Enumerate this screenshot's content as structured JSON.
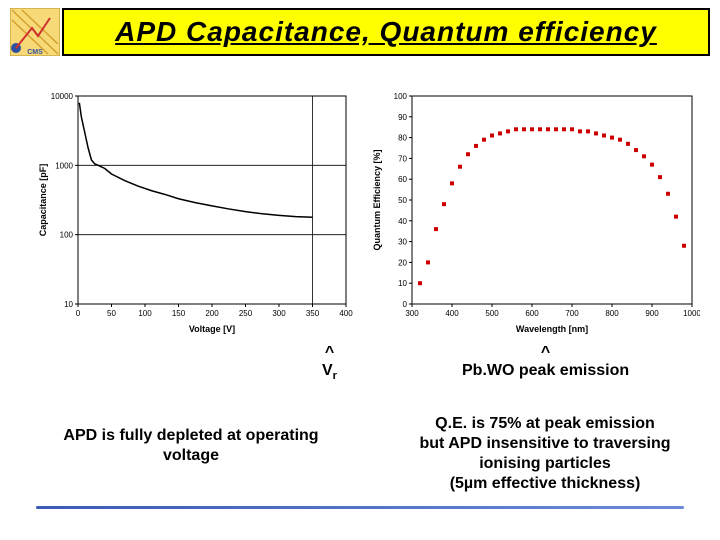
{
  "title": "APD  Capacitance, Quantum efficiency",
  "arrow_vr_label": "Vr",
  "arrow_pbwo_label": "Pb.WO peak emission",
  "caption_left": "APD is fully depleted at operating voltage",
  "caption_right_l1": "Q.E. is 75% at peak emission",
  "caption_right_l2": "but APD insensitive to traversing",
  "caption_right_l3": "ionising particles",
  "caption_right_l4": "(5µm effective thickness)",
  "chart_left": {
    "type": "line",
    "xlabel": "Voltage [V]",
    "ylabel": "Capacitance [pF]",
    "xlim": [
      0,
      400
    ],
    "xticks": [
      0,
      50,
      100,
      150,
      200,
      250,
      300,
      350,
      400
    ],
    "yscale": "log",
    "ylim": [
      10,
      10000
    ],
    "yticks": [
      10,
      100,
      1000,
      10000
    ],
    "label_fontsize": 9,
    "tick_fontsize": 8,
    "line_color": "#000000",
    "line_width": 1.5,
    "grid_color": "#000000",
    "hlines": [
      100,
      1000
    ],
    "vline": 350,
    "series": [
      {
        "x": 2,
        "y": 8000
      },
      {
        "x": 5,
        "y": 5000
      },
      {
        "x": 10,
        "y": 3000
      },
      {
        "x": 15,
        "y": 1800
      },
      {
        "x": 20,
        "y": 1200
      },
      {
        "x": 25,
        "y": 1050
      },
      {
        "x": 30,
        "y": 1000
      },
      {
        "x": 40,
        "y": 900
      },
      {
        "x": 50,
        "y": 750
      },
      {
        "x": 70,
        "y": 600
      },
      {
        "x": 90,
        "y": 500
      },
      {
        "x": 110,
        "y": 430
      },
      {
        "x": 130,
        "y": 380
      },
      {
        "x": 150,
        "y": 330
      },
      {
        "x": 175,
        "y": 290
      },
      {
        "x": 200,
        "y": 260
      },
      {
        "x": 225,
        "y": 235
      },
      {
        "x": 250,
        "y": 215
      },
      {
        "x": 275,
        "y": 200
      },
      {
        "x": 300,
        "y": 190
      },
      {
        "x": 325,
        "y": 182
      },
      {
        "x": 350,
        "y": 178
      }
    ]
  },
  "chart_right": {
    "type": "scatter",
    "xlabel": "Wavelength [nm]",
    "ylabel": "Quantum Efficiency [%]",
    "xlim": [
      300,
      1000
    ],
    "xticks": [
      300,
      400,
      500,
      600,
      700,
      800,
      900,
      1000
    ],
    "ylim": [
      0,
      100
    ],
    "yticks": [
      0,
      10,
      20,
      30,
      40,
      50,
      60,
      70,
      80,
      90,
      100
    ],
    "label_fontsize": 9,
    "tick_fontsize": 8,
    "marker_color": "#cc0000",
    "marker_size": 4,
    "grid_color": "#cccccc",
    "series": [
      {
        "x": 320,
        "y": 10
      },
      {
        "x": 340,
        "y": 20
      },
      {
        "x": 360,
        "y": 36
      },
      {
        "x": 380,
        "y": 48
      },
      {
        "x": 400,
        "y": 58
      },
      {
        "x": 420,
        "y": 66
      },
      {
        "x": 440,
        "y": 72
      },
      {
        "x": 460,
        "y": 76
      },
      {
        "x": 480,
        "y": 79
      },
      {
        "x": 500,
        "y": 81
      },
      {
        "x": 520,
        "y": 82
      },
      {
        "x": 540,
        "y": 83
      },
      {
        "x": 560,
        "y": 84
      },
      {
        "x": 580,
        "y": 84
      },
      {
        "x": 600,
        "y": 84
      },
      {
        "x": 620,
        "y": 84
      },
      {
        "x": 640,
        "y": 84
      },
      {
        "x": 660,
        "y": 84
      },
      {
        "x": 680,
        "y": 84
      },
      {
        "x": 700,
        "y": 84
      },
      {
        "x": 720,
        "y": 83
      },
      {
        "x": 740,
        "y": 83
      },
      {
        "x": 760,
        "y": 82
      },
      {
        "x": 780,
        "y": 81
      },
      {
        "x": 800,
        "y": 80
      },
      {
        "x": 820,
        "y": 79
      },
      {
        "x": 840,
        "y": 77
      },
      {
        "x": 860,
        "y": 74
      },
      {
        "x": 880,
        "y": 71
      },
      {
        "x": 900,
        "y": 67
      },
      {
        "x": 920,
        "y": 61
      },
      {
        "x": 940,
        "y": 53
      },
      {
        "x": 960,
        "y": 42
      },
      {
        "x": 980,
        "y": 28
      }
    ]
  }
}
